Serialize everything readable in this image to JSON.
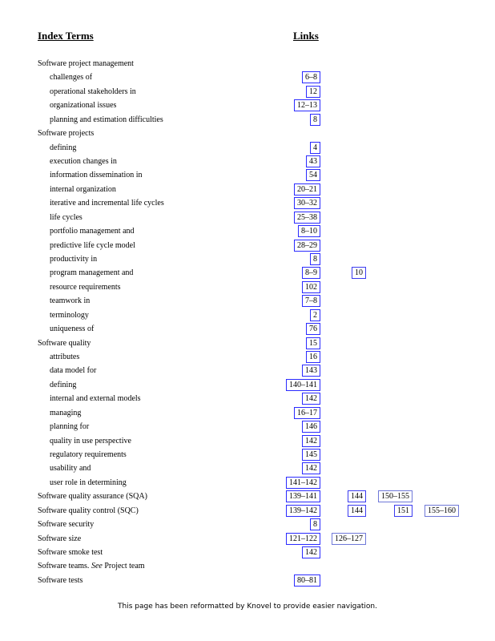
{
  "headers": {
    "terms": "Index Terms",
    "links": "Links"
  },
  "link_color": "#2b2bff",
  "entries": [
    {
      "term": "Software project management",
      "level": 0,
      "links": []
    },
    {
      "term": "challenges of",
      "level": 1,
      "links": [
        [
          "6–8"
        ]
      ]
    },
    {
      "term": "operational stakeholders in",
      "level": 1,
      "links": [
        [
          "12"
        ]
      ]
    },
    {
      "term": "organizational issues",
      "level": 1,
      "links": [
        [
          "12–13"
        ]
      ]
    },
    {
      "term": "planning and estimation difficulties",
      "level": 1,
      "links": [
        [
          "8"
        ]
      ]
    },
    {
      "term": "Software projects",
      "level": 0,
      "links": []
    },
    {
      "term": "defining",
      "level": 1,
      "links": [
        [
          "4"
        ]
      ]
    },
    {
      "term": "execution changes in",
      "level": 1,
      "links": [
        [
          "43"
        ]
      ]
    },
    {
      "term": "information dissemination in",
      "level": 1,
      "links": [
        [
          "54"
        ]
      ]
    },
    {
      "term": "internal organization",
      "level": 1,
      "links": [
        [
          "20–21"
        ]
      ]
    },
    {
      "term": "iterative and incremental life cycles",
      "level": 1,
      "links": [
        [
          "30–32"
        ]
      ]
    },
    {
      "term": "life cycles",
      "level": 1,
      "links": [
        [
          "25–38"
        ]
      ]
    },
    {
      "term": "portfolio management and",
      "level": 1,
      "links": [
        [
          "8–10"
        ]
      ]
    },
    {
      "term": "predictive life cycle model",
      "level": 1,
      "links": [
        [
          "28–29"
        ]
      ]
    },
    {
      "term": "productivity in",
      "level": 1,
      "links": [
        [
          "8"
        ]
      ]
    },
    {
      "term": "program management and",
      "level": 1,
      "links": [
        [
          "8–9"
        ],
        [
          "10"
        ]
      ]
    },
    {
      "term": "resource requirements",
      "level": 1,
      "links": [
        [
          "102"
        ]
      ]
    },
    {
      "term": "teamwork in",
      "level": 1,
      "links": [
        [
          "7–8"
        ]
      ]
    },
    {
      "term": "terminology",
      "level": 1,
      "links": [
        [
          "2"
        ]
      ]
    },
    {
      "term": "uniqueness of",
      "level": 1,
      "links": [
        [
          "76"
        ]
      ]
    },
    {
      "term": "Software quality",
      "level": 0,
      "links": [
        [
          "15"
        ]
      ]
    },
    {
      "term": "attributes",
      "level": 1,
      "links": [
        [
          "16"
        ]
      ]
    },
    {
      "term": "data model for",
      "level": 1,
      "links": [
        [
          "143"
        ]
      ]
    },
    {
      "term": "defining",
      "level": 1,
      "links": [
        [
          "140–141"
        ]
      ]
    },
    {
      "term": "internal and external models",
      "level": 1,
      "links": [
        [
          "142"
        ]
      ]
    },
    {
      "term": "managing",
      "level": 1,
      "links": [
        [
          "16–17"
        ]
      ]
    },
    {
      "term": "planning for",
      "level": 1,
      "links": [
        [
          "146"
        ]
      ]
    },
    {
      "term": "quality in use perspective",
      "level": 1,
      "links": [
        [
          "142"
        ]
      ]
    },
    {
      "term": "regulatory requirements",
      "level": 1,
      "links": [
        [
          "145"
        ]
      ]
    },
    {
      "term": "usability and",
      "level": 1,
      "links": [
        [
          "142"
        ]
      ]
    },
    {
      "term": "user role in determining",
      "level": 1,
      "links": [
        [
          "141–142"
        ]
      ]
    },
    {
      "term": "Software quality assurance (SQA)",
      "level": 0,
      "links": [
        [
          "139–141"
        ],
        [
          "144"
        ],
        [
          "150–155"
        ]
      ]
    },
    {
      "term": "Software quality control (SQC)",
      "level": 0,
      "links": [
        [
          "139–142"
        ],
        [
          "144"
        ],
        [
          "151"
        ],
        [
          "155–160"
        ]
      ]
    },
    {
      "term": "Software security",
      "level": 0,
      "links": [
        [
          "8"
        ]
      ]
    },
    {
      "term": "Software size",
      "level": 0,
      "links": [
        [
          "121–122"
        ],
        [
          "126–127"
        ]
      ]
    },
    {
      "term": "Software smoke test",
      "level": 0,
      "links": [
        [
          "142"
        ]
      ]
    },
    {
      "term": "Software teams. ",
      "see": "See",
      "see_target": " Project team",
      "level": 0,
      "links": []
    },
    {
      "term": "Software tests",
      "level": 0,
      "links": [
        [
          "80–81"
        ]
      ]
    }
  ],
  "footer": "This page has been reformatted by Knovel to provide easier navigation."
}
